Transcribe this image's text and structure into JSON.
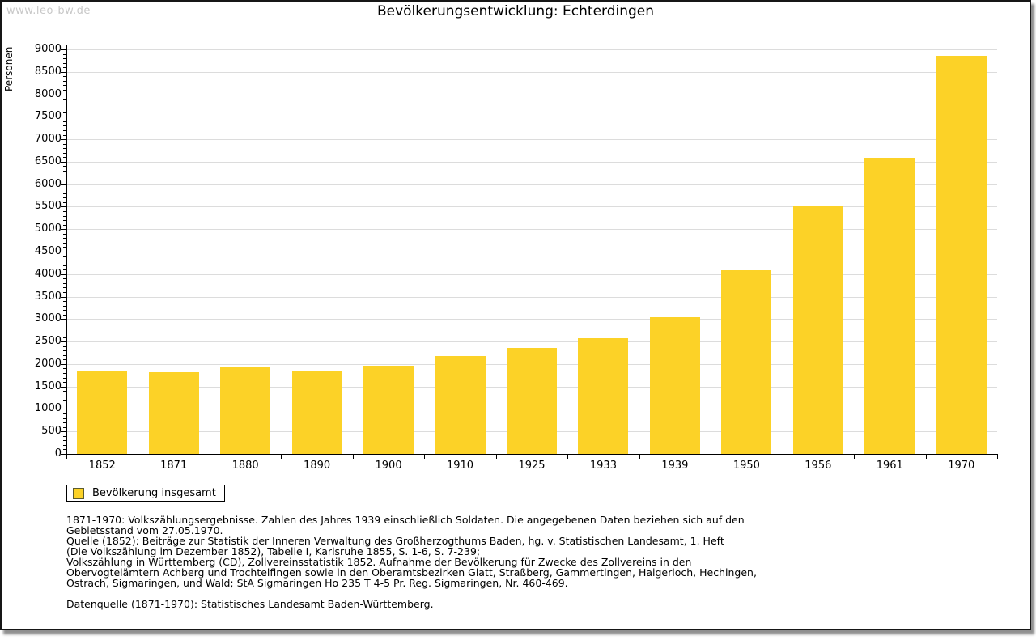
{
  "watermark": "www.leo-bw.de",
  "title": "Bevölkerungsentwicklung: Echterdingen",
  "legend": {
    "label": "Bevölkerung insgesamt"
  },
  "colors": {
    "bar": "#FCD227",
    "gridline": "#DCDCDC",
    "watermark": "#C8C8C8",
    "axis": "#000000",
    "legend_swatch_border": "#5C5C2E"
  },
  "chart_data": {
    "type": "bar",
    "title": "Bevölkerungsentwicklung: Echterdingen",
    "xlabel": "",
    "ylabel": "Personen",
    "categories": [
      "1852",
      "1871",
      "1880",
      "1890",
      "1900",
      "1910",
      "1925",
      "1933",
      "1939",
      "1950",
      "1956",
      "1961",
      "1970"
    ],
    "values": [
      1830,
      1825,
      1950,
      1860,
      1970,
      2170,
      2350,
      2580,
      3050,
      4080,
      5520,
      6580,
      8860
    ],
    "series_name": "Bevölkerung insgesamt",
    "ylim": [
      0,
      9000
    ],
    "y_major_tick_step": 500,
    "y_minor_tick_step": 100,
    "grid": "horizontal",
    "legend_position": "bottom-left",
    "unit": "Personen"
  },
  "footer": {
    "lines": [
      "1871-1970: Volkszählungsergebnisse. Zahlen des Jahres 1939 einschließlich Soldaten. Die angegebenen Daten beziehen sich auf den",
      "Gebietsstand vom 27.05.1970.",
      "Quelle (1852): Beiträge zur Statistik der Inneren Verwaltung des Großherzogthums Baden, hg. v. Statistischen Landesamt, 1. Heft",
      "(Die Volkszählung im Dezember 1852), Tabelle I, Karlsruhe 1855, S. 1-6, S. 7-239;",
      "Volkszählung in Württemberg (CD), Zollvereinsstatistik 1852. Aufnahme der Bevölkerung für Zwecke des Zollvereins in den",
      "Obervogteiämtern Achberg und Trochtelfingen sowie in den Oberamtsbezirken Glatt, Straßberg, Gammertingen, Haigerloch, Hechingen,",
      "Ostrach, Sigmaringen, und Wald; StA Sigmaringen Ho 235 T 4-5 Pr. Reg. Sigmaringen, Nr. 460-469.",
      "",
      "Datenquelle (1871-1970): Statistisches Landesamt Baden-Württemberg."
    ]
  }
}
